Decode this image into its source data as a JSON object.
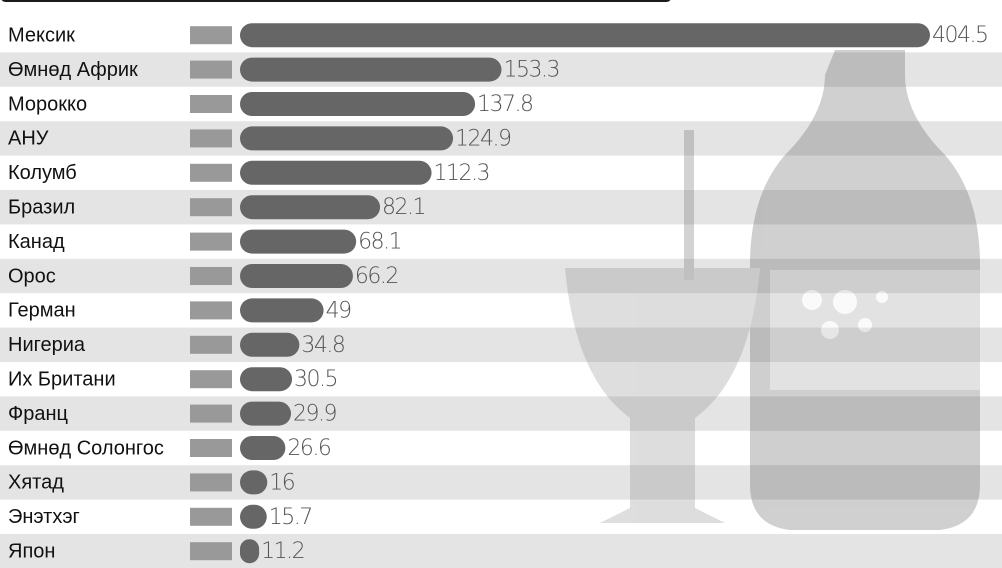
{
  "chart_data": {
    "type": "bar",
    "orientation": "horizontal",
    "categories": [
      "Мексик",
      "Өмнөд Африк",
      "Морокко",
      "АНУ",
      "Колумб",
      "Бразил",
      "Канад",
      "Орос",
      "Герман",
      "Нигериа",
      "Их Британи",
      "Франц",
      "Өмнөд Солонгос",
      "Хятад",
      "Энэтхэг",
      "Япон"
    ],
    "values": [
      404.5,
      153.3,
      137.8,
      124.9,
      112.3,
      82.1,
      68.1,
      66.2,
      49,
      34.8,
      30.5,
      29.9,
      26.6,
      16,
      15.7,
      11.2
    ],
    "color": "#666666"
  }
}
